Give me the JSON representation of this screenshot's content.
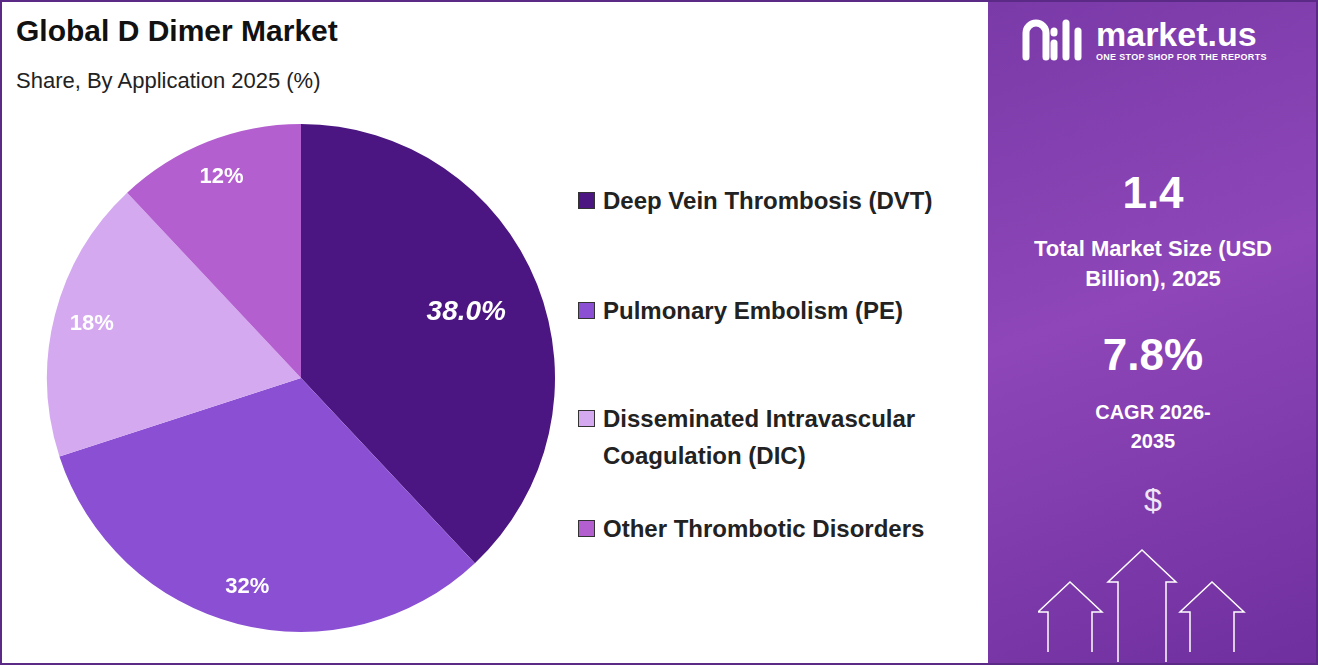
{
  "chart_data": {
    "type": "pie",
    "title": "Global D Dimer Market",
    "subtitle": "Share, By Application 2025 (%)",
    "categories": [
      "Deep Vein Thrombosis (DVT)",
      "Pulmonary Embolism (PE)",
      "Disseminated Intravascular Coagulation (DIC)",
      "Other Thrombotic Disorders"
    ],
    "values": [
      38,
      32,
      18,
      12
    ],
    "value_labels": [
      "38.0%",
      "32%",
      "18%",
      "12%"
    ],
    "colors": [
      "#4b1681",
      "#8a4fd3",
      "#d4a9f0",
      "#b45fd0"
    ],
    "data_labels": true,
    "legend": "right"
  },
  "side_panel": {
    "brand": "market.us",
    "tagline": "ONE STOP SHOP FOR THE REPORTS",
    "market_size": "1.4",
    "market_size_label": "Total Market Size (USD Billion), 2025",
    "cagr": "7.8%",
    "cagr_label": "CAGR 2026-2035",
    "symbol": "$"
  }
}
